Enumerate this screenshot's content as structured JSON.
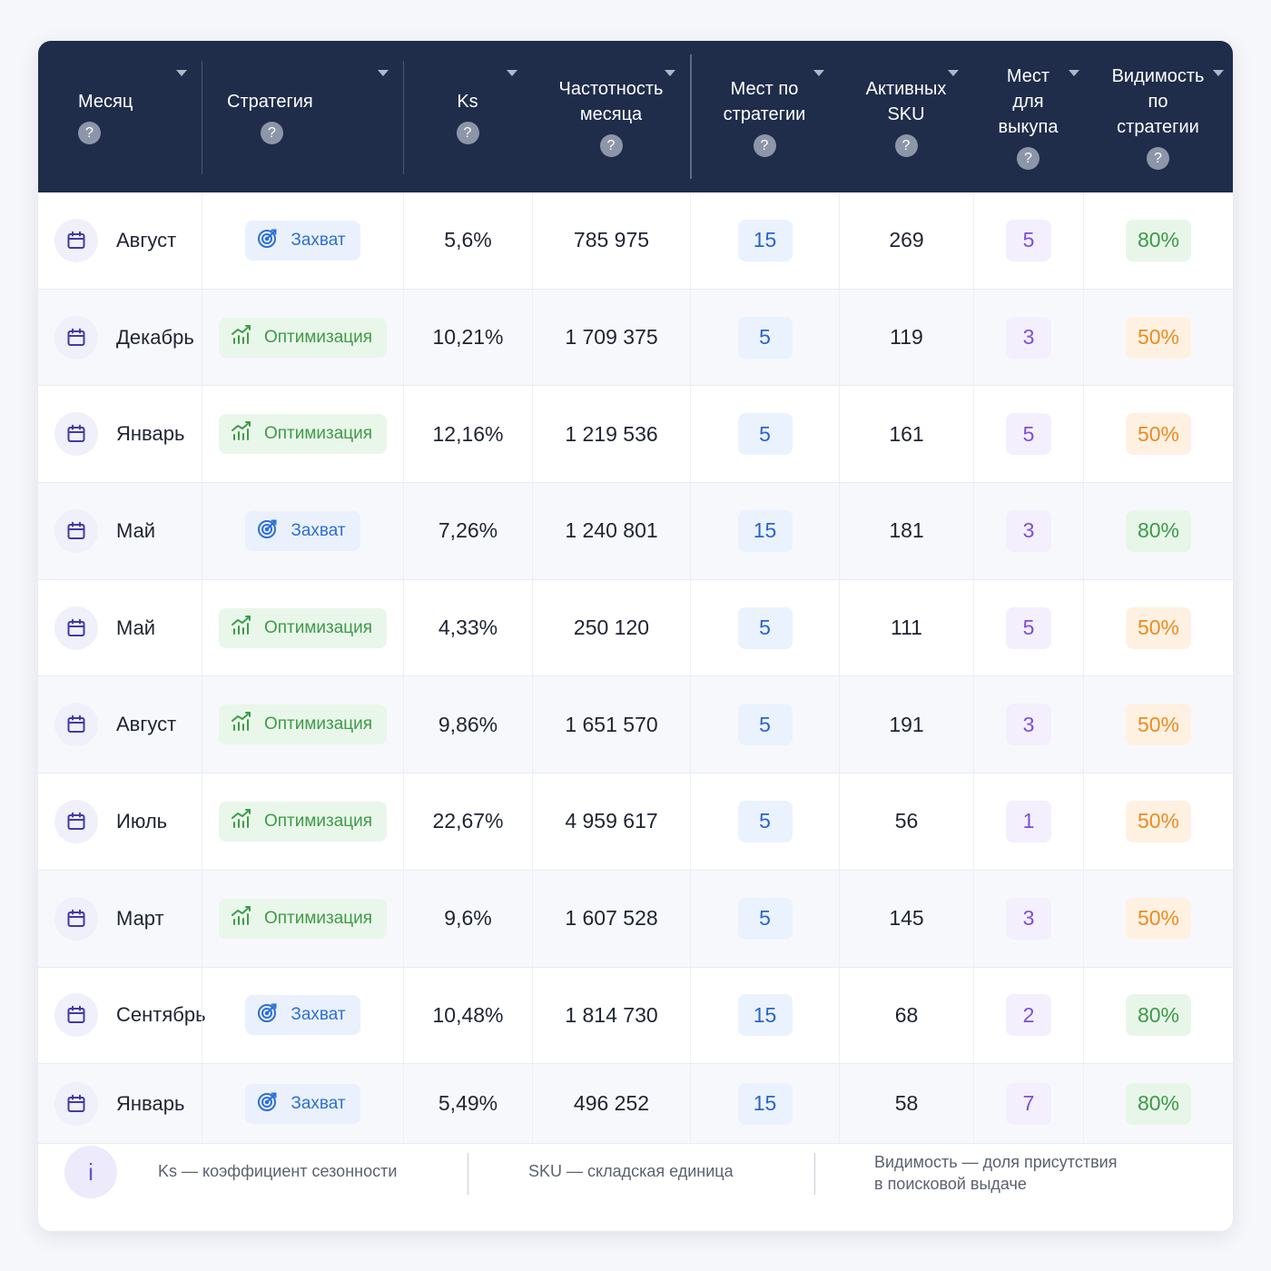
{
  "colors": {
    "header_bg": "#1f2d4b",
    "capture": "#2d6fd6",
    "optimization": "#3f9b48",
    "places_blue": "#2a65c9",
    "buyout_violet": "#7c4fd8",
    "visibility_green": "#3d9a48",
    "visibility_orange": "#ee8a1f"
  },
  "table": {
    "headers": {
      "month": "Месяц",
      "strategy": "Стратегия",
      "ks": "Ks",
      "freq_1": "Частотность",
      "freq_2": "месяца",
      "places_1": "Мест по",
      "places_2": "стратегии",
      "sku_1": "Активных",
      "sku_2": "SKU",
      "buyout_1": "Мест",
      "buyout_2": "для",
      "buyout_3": "выкупа",
      "vis_1": "Видимость",
      "vis_2": "по",
      "vis_3": "стратегии",
      "help": "?"
    },
    "rows": [
      {
        "month": "Август",
        "strategy": "Захват",
        "kind": "capture",
        "ks": "5,6%",
        "freq": "785 975",
        "places": "15",
        "sku": "269",
        "buyout": "5",
        "visibility": "80%",
        "vis_kind": "green"
      },
      {
        "month": "Декабрь",
        "strategy": "Оптимизация",
        "kind": "optim",
        "ks": "10,21%",
        "freq": "1 709 375",
        "places": "5",
        "sku": "119",
        "buyout": "3",
        "visibility": "50%",
        "vis_kind": "orange"
      },
      {
        "month": "Январь",
        "strategy": "Оптимизация",
        "kind": "optim",
        "ks": "12,16%",
        "freq": "1 219 536",
        "places": "5",
        "sku": "161",
        "buyout": "5",
        "visibility": "50%",
        "vis_kind": "orange"
      },
      {
        "month": "Май",
        "strategy": "Захват",
        "kind": "capture",
        "ks": "7,26%",
        "freq": "1 240 801",
        "places": "15",
        "sku": "181",
        "buyout": "3",
        "visibility": "80%",
        "vis_kind": "green"
      },
      {
        "month": "Май",
        "strategy": "Оптимизация",
        "kind": "optim",
        "ks": "4,33%",
        "freq": "250 120",
        "places": "5",
        "sku": "111",
        "buyout": "5",
        "visibility": "50%",
        "vis_kind": "orange"
      },
      {
        "month": "Август",
        "strategy": "Оптимизация",
        "kind": "optim",
        "ks": "9,86%",
        "freq": "1 651 570",
        "places": "5",
        "sku": "191",
        "buyout": "3",
        "visibility": "50%",
        "vis_kind": "orange"
      },
      {
        "month": "Июль",
        "strategy": "Оптимизация",
        "kind": "optim",
        "ks": "22,67%",
        "freq": "4 959 617",
        "places": "5",
        "sku": "56",
        "buyout": "1",
        "visibility": "50%",
        "vis_kind": "orange"
      },
      {
        "month": "Март",
        "strategy": "Оптимизация",
        "kind": "optim",
        "ks": "9,6%",
        "freq": "1 607 528",
        "places": "5",
        "sku": "145",
        "buyout": "3",
        "visibility": "50%",
        "vis_kind": "orange"
      },
      {
        "month": "Сентябрь",
        "strategy": "Захват",
        "kind": "capture",
        "ks": "10,48%",
        "freq": "1 814 730",
        "places": "15",
        "sku": "68",
        "buyout": "2",
        "visibility": "80%",
        "vis_kind": "green"
      },
      {
        "month": "Январь",
        "strategy": "Захват",
        "kind": "capture",
        "ks": "5,49%",
        "freq": "496 252",
        "places": "15",
        "sku": "58",
        "buyout": "7",
        "visibility": "80%",
        "vis_kind": "green"
      }
    ]
  },
  "footer": {
    "info_icon": "i",
    "note_ks": "Ks — коэффициент сезонности",
    "note_sku": "SKU — складская единица",
    "note_vis_1": "Видимость — доля присутствия",
    "note_vis_2": "в поисковой выдаче"
  }
}
